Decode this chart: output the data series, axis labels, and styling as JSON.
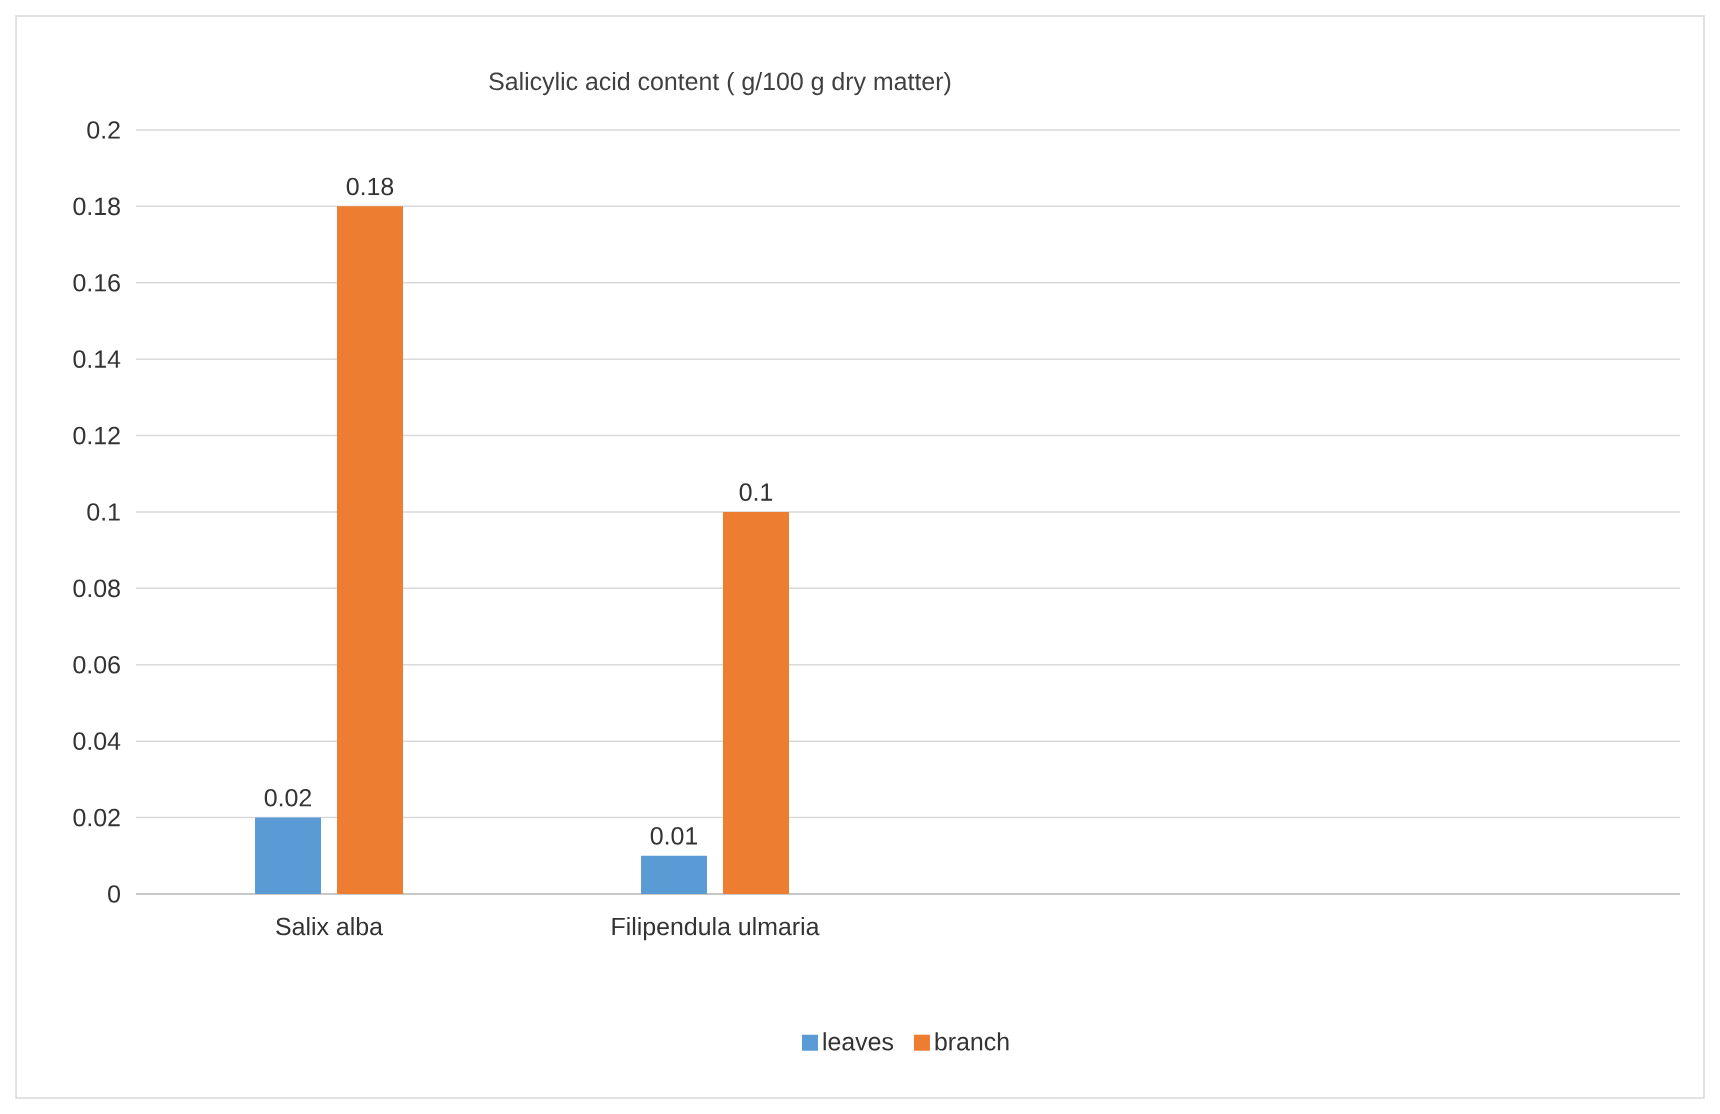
{
  "chart_data": {
    "type": "bar",
    "title": "Salicylic acid content ( g/100 g dry matter)",
    "categories": [
      "Salix alba",
      "Filipendula ulmaria",
      null,
      null
    ],
    "series": [
      {
        "name": "leaves",
        "color": "#5b9bd5",
        "values": [
          0.02,
          0.01,
          null,
          null
        ]
      },
      {
        "name": "branch",
        "color": "#ed7d31",
        "values": [
          0.18,
          0.1,
          null,
          null
        ]
      }
    ],
    "ylim": [
      0,
      0.2
    ],
    "yticks": [
      0,
      0.02,
      0.04,
      0.06,
      0.08,
      0.1,
      0.12,
      0.14,
      0.16,
      0.18,
      0.2
    ],
    "grid": "y",
    "legend": "bottom",
    "data_labels": true
  }
}
